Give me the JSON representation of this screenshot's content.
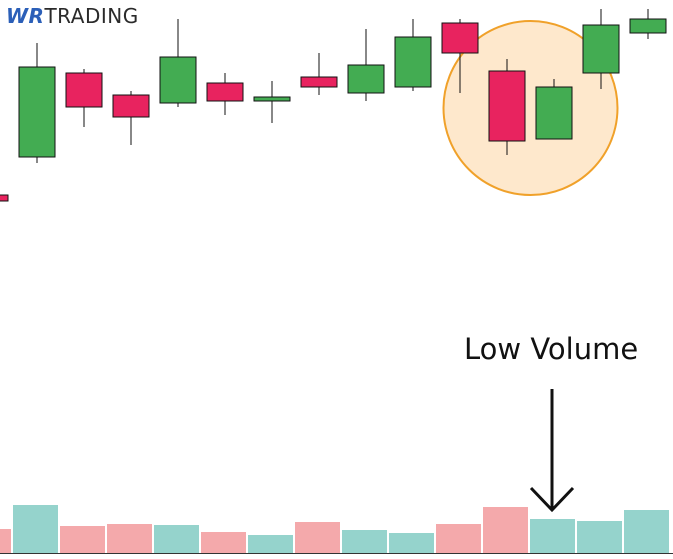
{
  "logo": {
    "part1": "WR",
    "part2": "TRADING"
  },
  "annotation": {
    "label": "Low Volume"
  },
  "colors": {
    "bullish": "#43ac52",
    "bearish": "#e8235f",
    "volume_up": "#95d3cc",
    "volume_down": "#f4a9ab",
    "highlight_fill": "#fee8cc",
    "highlight_stroke": "#f0a12a"
  },
  "chart_data": {
    "type": "candlestick",
    "title": "",
    "xlabel": "",
    "ylabel": "",
    "ylim": [
      0,
      100
    ],
    "candles": [
      {
        "dir": "down",
        "open": 22,
        "close": 19,
        "high": 23,
        "low": 18
      },
      {
        "dir": "up",
        "open": 41,
        "close": 86,
        "high": 98,
        "low": 38
      },
      {
        "dir": "down",
        "open": 83,
        "close": 66,
        "high": 85,
        "low": 56
      },
      {
        "dir": "down",
        "open": 72,
        "close": 61,
        "high": 74,
        "low": 47
      },
      {
        "dir": "up",
        "open": 68,
        "close": 91,
        "high": 110,
        "low": 66
      },
      {
        "dir": "down",
        "open": 78,
        "close": 69,
        "high": 83,
        "low": 62
      },
      {
        "dir": "up",
        "open": 69,
        "close": 71,
        "high": 79,
        "low": 58
      },
      {
        "dir": "down",
        "open": 81,
        "close": 76,
        "high": 93,
        "low": 72
      },
      {
        "dir": "up",
        "open": 73,
        "close": 87,
        "high": 105,
        "low": 69
      },
      {
        "dir": "up",
        "open": 76,
        "close": 101,
        "high": 110,
        "low": 74
      },
      {
        "dir": "down",
        "open": 108,
        "close": 93,
        "high": 110,
        "low": 73
      },
      {
        "dir": "down",
        "open": 84,
        "close": 49,
        "high": 90,
        "low": 42
      },
      {
        "dir": "up",
        "open": 50,
        "close": 76,
        "high": 80,
        "low": 50
      },
      {
        "dir": "up",
        "open": 83,
        "close": 107,
        "high": 115,
        "low": 75
      },
      {
        "dir": "up",
        "open": 103,
        "close": 110,
        "high": 115,
        "low": 100
      }
    ],
    "volume": [
      {
        "dir": "down",
        "value": 24
      },
      {
        "dir": "up",
        "value": 48
      },
      {
        "dir": "down",
        "value": 27
      },
      {
        "dir": "down",
        "value": 29
      },
      {
        "dir": "up",
        "value": 28
      },
      {
        "dir": "down",
        "value": 21
      },
      {
        "dir": "up",
        "value": 18
      },
      {
        "dir": "down",
        "value": 31
      },
      {
        "dir": "up",
        "value": 23
      },
      {
        "dir": "up",
        "value": 20
      },
      {
        "dir": "down",
        "value": 29
      },
      {
        "dir": "down",
        "value": 46
      },
      {
        "dir": "up",
        "value": 34
      },
      {
        "dir": "up",
        "value": 32
      },
      {
        "dir": "up",
        "value": 43
      }
    ],
    "highlight_candles": [
      11,
      12
    ]
  }
}
